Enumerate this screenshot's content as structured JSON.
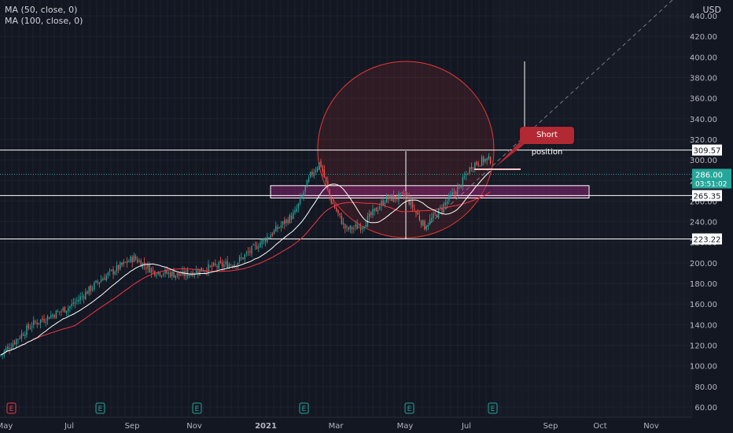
{
  "legend": {
    "ma50": "MA (50, close, 0)",
    "ma100": "MA (100, close, 0)"
  },
  "currency": "USD",
  "annotation": {
    "text": "Short position"
  },
  "chart_data": {
    "type": "candlestick",
    "price_axis": {
      "ticks": [
        "60.00",
        "80.00",
        "100.00",
        "120.00",
        "140.00",
        "160.00",
        "180.00",
        "200.00",
        "220.00",
        "240.00",
        "260.00",
        "280.00",
        "300.00",
        "320.00",
        "340.00",
        "360.00",
        "380.00",
        "400.00",
        "420.00",
        "440.00"
      ],
      "range": [
        55,
        455
      ]
    },
    "time_axis": {
      "labels": [
        "May",
        "Jul",
        "Sep",
        "Nov",
        "2021",
        "Mar",
        "May",
        "Jul",
        "Sep",
        "Oct",
        "Nov"
      ]
    },
    "horizontal_levels": [
      {
        "label": "309.57",
        "value": 309.57
      },
      {
        "label": "265.35",
        "value": 265.35
      },
      {
        "label": "223.22",
        "value": 223.22
      }
    ],
    "current_price": {
      "label": "286.00",
      "countdown": "03:51:02",
      "value": 286.0
    },
    "earnings_markers": [
      "E",
      "E",
      "E",
      "E",
      "E",
      "E"
    ],
    "series": [
      {
        "name": "MA (50, close, 0)",
        "color": "#ffffff"
      },
      {
        "name": "MA (100, close, 0)",
        "color": "#f23645"
      }
    ],
    "zone": {
      "top": 275,
      "bottom": 263
    },
    "colors": {
      "up": "#26a69a",
      "down": "#ef5350",
      "background": "#131722",
      "grid": "#1e222d",
      "circle": "#e53935",
      "zone": "#7b2d69"
    }
  }
}
